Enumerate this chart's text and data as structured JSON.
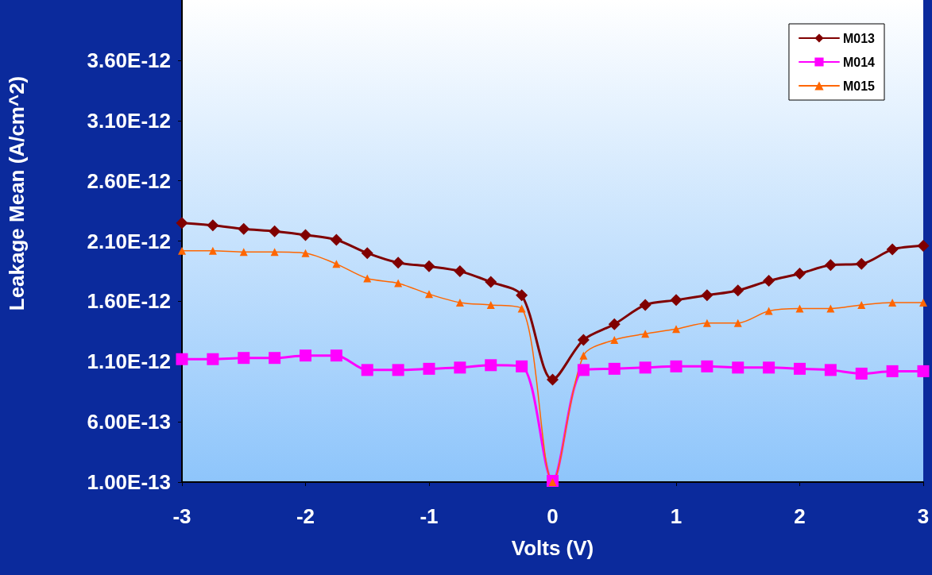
{
  "chart_data": {
    "type": "line",
    "xlabel": "Volts (V)",
    "ylabel": "Leakage Mean (A/cm^2)",
    "x": [
      -3,
      -2.75,
      -2.5,
      -2.25,
      -2,
      -1.75,
      -1.5,
      -1.25,
      -1,
      -0.75,
      -0.5,
      -0.25,
      0,
      0.25,
      0.5,
      0.75,
      1,
      1.25,
      1.5,
      1.75,
      2,
      2.25,
      2.5,
      2.75,
      3
    ],
    "series": [
      {
        "name": "M013",
        "color": "#800000",
        "marker": "diamond",
        "values": [
          2.25e-12,
          2.23e-12,
          2.2e-12,
          2.18e-12,
          2.15e-12,
          2.11e-12,
          2e-12,
          1.92e-12,
          1.89e-12,
          1.85e-12,
          1.76e-12,
          1.65e-12,
          9.5e-13,
          1.28e-12,
          1.41e-12,
          1.57e-12,
          1.61e-12,
          1.65e-12,
          1.69e-12,
          1.77e-12,
          1.83e-12,
          1.9e-12,
          1.91e-12,
          2.03e-12,
          2.06e-12
        ]
      },
      {
        "name": "M014",
        "color": "#ff00ff",
        "marker": "square",
        "values": [
          1.12e-12,
          1.12e-12,
          1.13e-12,
          1.13e-12,
          1.15e-12,
          1.15e-12,
          1.03e-12,
          1.03e-12,
          1.04e-12,
          1.05e-12,
          1.07e-12,
          1.06e-12,
          1.1e-13,
          1.03e-12,
          1.04e-12,
          1.05e-12,
          1.06e-12,
          1.06e-12,
          1.05e-12,
          1.05e-12,
          1.04e-12,
          1.03e-12,
          1e-12,
          1.02e-12,
          1.02e-12
        ]
      },
      {
        "name": "M015",
        "color": "#ff6600",
        "marker": "triangle",
        "values": [
          2.02e-12,
          2.02e-12,
          2.01e-12,
          2.01e-12,
          2e-12,
          1.91e-12,
          1.79e-12,
          1.75e-12,
          1.66e-12,
          1.59e-12,
          1.57e-12,
          1.54e-12,
          1e-13,
          1.15e-12,
          1.28e-12,
          1.33e-12,
          1.37e-12,
          1.42e-12,
          1.42e-12,
          1.52e-12,
          1.54e-12,
          1.54e-12,
          1.57e-12,
          1.59e-12,
          1.59e-12
        ]
      }
    ],
    "xlim": [
      -3,
      3
    ],
    "xticks": [
      -3,
      -2,
      -1,
      0,
      1,
      2,
      3
    ],
    "ylim": [
      1e-13,
      4.1e-12
    ],
    "yticks": [
      {
        "value": 1e-13,
        "label": "1.00E-13"
      },
      {
        "value": 6e-13,
        "label": "6.00E-13"
      },
      {
        "value": 1.1e-12,
        "label": "1.10E-12"
      },
      {
        "value": 1.6e-12,
        "label": "1.60E-12"
      },
      {
        "value": 2.1e-12,
        "label": "2.10E-12"
      },
      {
        "value": 2.6e-12,
        "label": "2.60E-12"
      },
      {
        "value": 3.1e-12,
        "label": "3.10E-12"
      },
      {
        "value": 3.6e-12,
        "label": "3.60E-12"
      }
    ],
    "grid": false,
    "legend": "top right"
  }
}
